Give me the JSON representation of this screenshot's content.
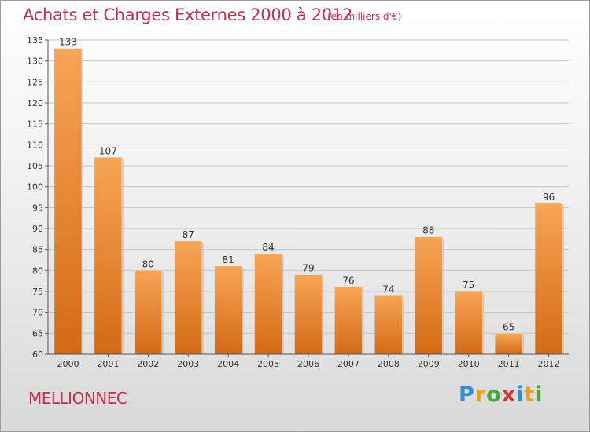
{
  "title": "Achats et Charges Externes 2000 à 2012",
  "unit_note": "(en milliers d'€)",
  "commune": "MELLIONNEC",
  "logo": {
    "letters": [
      "P",
      "r",
      "o",
      "x",
      "i",
      "t",
      "i"
    ],
    "colors": [
      "#2e8fd6",
      "#e8a21a",
      "#49a83c",
      "#d6322e",
      "#2e8fd6",
      "#e8a21a",
      "#49a83c"
    ]
  },
  "colors": {
    "bar_top": "#f7a556",
    "bar_bottom": "#d46a14",
    "title": "#c0304c"
  },
  "chart_data": {
    "type": "bar",
    "categories": [
      "2000",
      "2001",
      "2002",
      "2003",
      "2004",
      "2005",
      "2006",
      "2007",
      "2008",
      "2009",
      "2010",
      "2011",
      "2012"
    ],
    "values": [
      133,
      107,
      80,
      87,
      81,
      84,
      79,
      76,
      74,
      88,
      75,
      65,
      96
    ],
    "ylim": [
      60,
      135
    ],
    "yticks": [
      60,
      65,
      70,
      75,
      80,
      85,
      90,
      95,
      100,
      105,
      110,
      115,
      120,
      125,
      130,
      135
    ],
    "grid": true,
    "legend": "none"
  }
}
